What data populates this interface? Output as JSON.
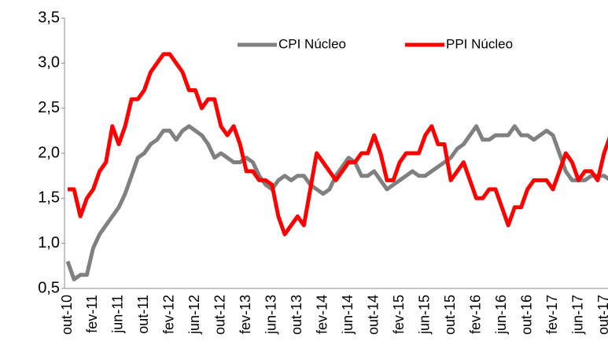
{
  "chart_data": {
    "type": "line",
    "categories": [
      "out-10",
      null,
      null,
      null,
      "fev-11",
      null,
      null,
      null,
      "jun-11",
      null,
      null,
      null,
      "out-11",
      null,
      null,
      null,
      "fev-12",
      null,
      null,
      null,
      "jun-12",
      null,
      null,
      null,
      "out-12",
      null,
      null,
      null,
      "fev-13",
      null,
      null,
      null,
      "jun-13",
      null,
      null,
      null,
      "out-13",
      null,
      null,
      null,
      "fev-14",
      null,
      null,
      null,
      "jun-14",
      null,
      null,
      null,
      "out-14",
      null,
      null,
      null,
      "fev-15",
      null,
      null,
      null,
      "jun-15",
      null,
      null,
      null,
      "out-15",
      null,
      null,
      null,
      "fev-16",
      null,
      null,
      null,
      "jun-16",
      null,
      null,
      null,
      "out-16",
      null,
      null,
      null,
      "fev-17",
      null,
      null,
      null,
      "jun-17",
      null,
      null,
      null,
      "out-17",
      null
    ],
    "series": [
      {
        "name": "CPI Núcleo",
        "color": "#808080",
        "values": [
          0.8,
          0.6,
          0.65,
          0.65,
          0.95,
          1.1,
          1.2,
          1.3,
          1.4,
          1.55,
          1.75,
          1.95,
          2.0,
          2.1,
          2.15,
          2.25,
          2.25,
          2.15,
          2.25,
          2.3,
          2.25,
          2.2,
          2.1,
          1.95,
          2.0,
          1.95,
          1.9,
          1.9,
          1.95,
          1.9,
          1.75,
          1.65,
          1.6,
          1.7,
          1.75,
          1.7,
          1.75,
          1.75,
          1.65,
          1.6,
          1.55,
          1.6,
          1.75,
          1.85,
          1.95,
          1.9,
          1.75,
          1.75,
          1.8,
          1.7,
          1.6,
          1.65,
          1.7,
          1.75,
          1.8,
          1.75,
          1.75,
          1.8,
          1.85,
          1.9,
          1.95,
          2.05,
          2.1,
          2.2,
          2.3,
          2.15,
          2.15,
          2.2,
          2.2,
          2.2,
          2.3,
          2.2,
          2.2,
          2.15,
          2.2,
          2.25,
          2.2,
          2.0,
          1.8,
          1.7,
          1.7,
          1.7,
          1.75,
          1.75,
          1.75,
          1.7
        ]
      },
      {
        "name": "PPI Núcleo",
        "color": "#ff0000",
        "values": [
          1.6,
          1.6,
          1.3,
          1.5,
          1.6,
          1.8,
          1.9,
          2.3,
          2.1,
          2.3,
          2.6,
          2.6,
          2.7,
          2.9,
          3.0,
          3.1,
          3.1,
          3.0,
          2.9,
          2.7,
          2.7,
          2.5,
          2.6,
          2.6,
          2.3,
          2.2,
          2.3,
          2.1,
          1.8,
          1.8,
          1.7,
          1.7,
          1.65,
          1.3,
          1.1,
          1.2,
          1.3,
          1.2,
          1.6,
          2.0,
          1.9,
          1.8,
          1.7,
          1.8,
          1.9,
          1.9,
          2.0,
          2.0,
          2.2,
          2.0,
          1.7,
          1.7,
          1.9,
          2.0,
          2.0,
          2.0,
          2.2,
          2.3,
          2.1,
          2.1,
          1.7,
          1.8,
          1.9,
          1.7,
          1.5,
          1.5,
          1.6,
          1.6,
          1.4,
          1.2,
          1.4,
          1.4,
          1.6,
          1.7,
          1.7,
          1.7,
          1.6,
          1.8,
          2.0,
          1.9,
          1.7,
          1.8,
          1.8,
          1.7,
          2.0,
          2.2
        ]
      }
    ],
    "ylim": [
      0.5,
      3.5
    ],
    "yticks": [
      {
        "value": 0.5,
        "label": "0,5"
      },
      {
        "value": 1.0,
        "label": "1,0"
      },
      {
        "value": 1.5,
        "label": "1,5"
      },
      {
        "value": 2.0,
        "label": "2,0"
      },
      {
        "value": 2.5,
        "label": "2,5"
      },
      {
        "value": 3.0,
        "label": "3,0"
      },
      {
        "value": 3.5,
        "label": "3,5"
      }
    ],
    "grid": false,
    "legend": "top"
  }
}
